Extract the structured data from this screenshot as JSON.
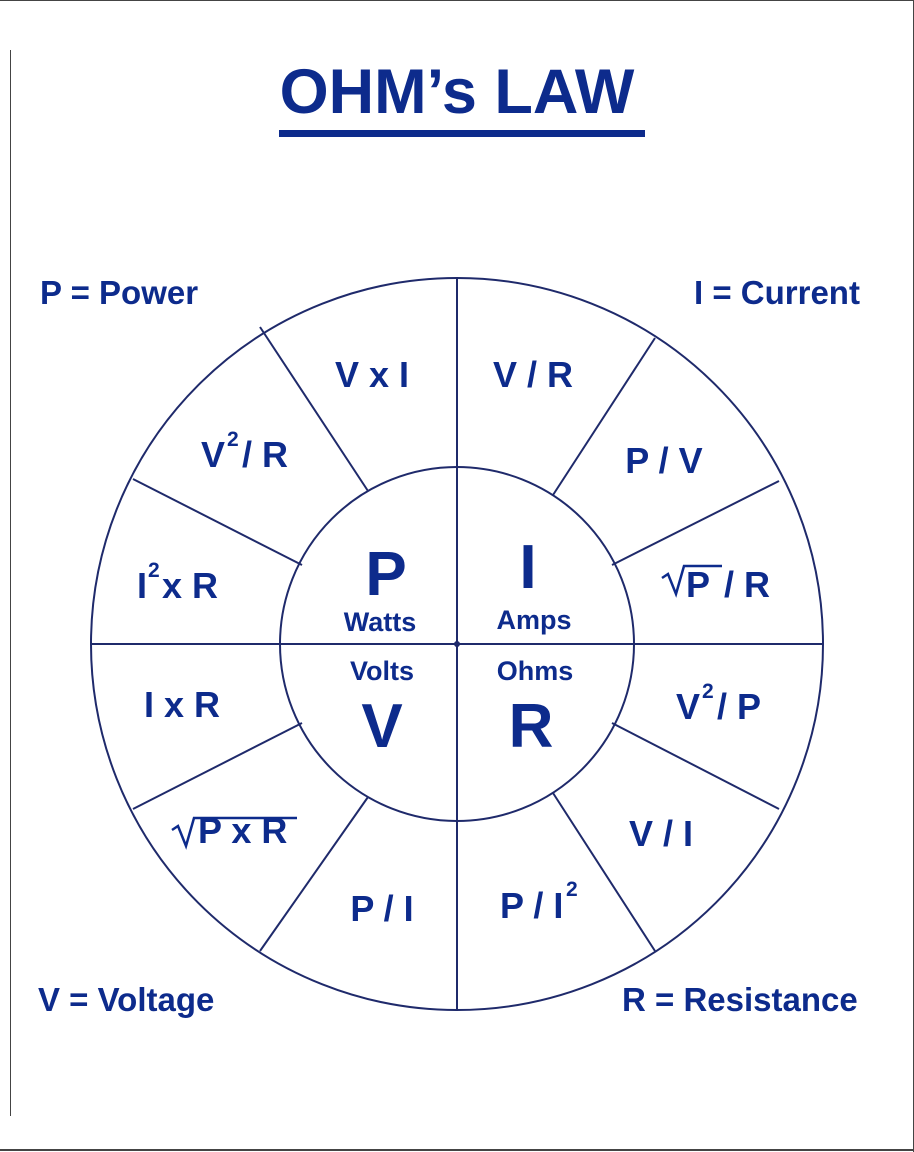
{
  "title": "OHM’s LAW",
  "legend": {
    "power": "P = Power",
    "current": "I = Current",
    "voltage": "V = Voltage",
    "resistance": "R = Resistance"
  },
  "center": {
    "p_symbol": "P",
    "p_unit": "Watts",
    "i_symbol": "I",
    "i_unit": "Amps",
    "v_symbol": "V",
    "v_unit": "Volts",
    "r_symbol": "R",
    "r_unit": "Ohms"
  },
  "formulas": {
    "v_times_i": "V x I",
    "v_sq_over_r_base": "V",
    "v_sq_over_r_exp": "2",
    "v_sq_over_r_rest": "/ R",
    "i_sq_r_base": "I",
    "i_sq_r_exp": "2",
    "i_sq_r_rest": "x R",
    "v_over_r": "V / R",
    "p_over_v": "P / V",
    "sqrt_p_over_r_radicand": "P",
    "sqrt_p_over_r_rest": "/ R",
    "i_times_r": "I x R",
    "sqrt_p_times_r": "P x R",
    "p_over_i": "P / I",
    "v_sq_over_p_base": "V",
    "v_sq_over_p_exp": "2",
    "v_sq_over_p_rest": "/ P",
    "v_over_i": "V / I",
    "p_over_i_sq_base": "P / I",
    "p_over_i_sq_exp": "2"
  },
  "colors": {
    "ink": "#0d2b8c",
    "line": "#1f2a6b",
    "frame": "#444444",
    "background": "#ffffff"
  }
}
